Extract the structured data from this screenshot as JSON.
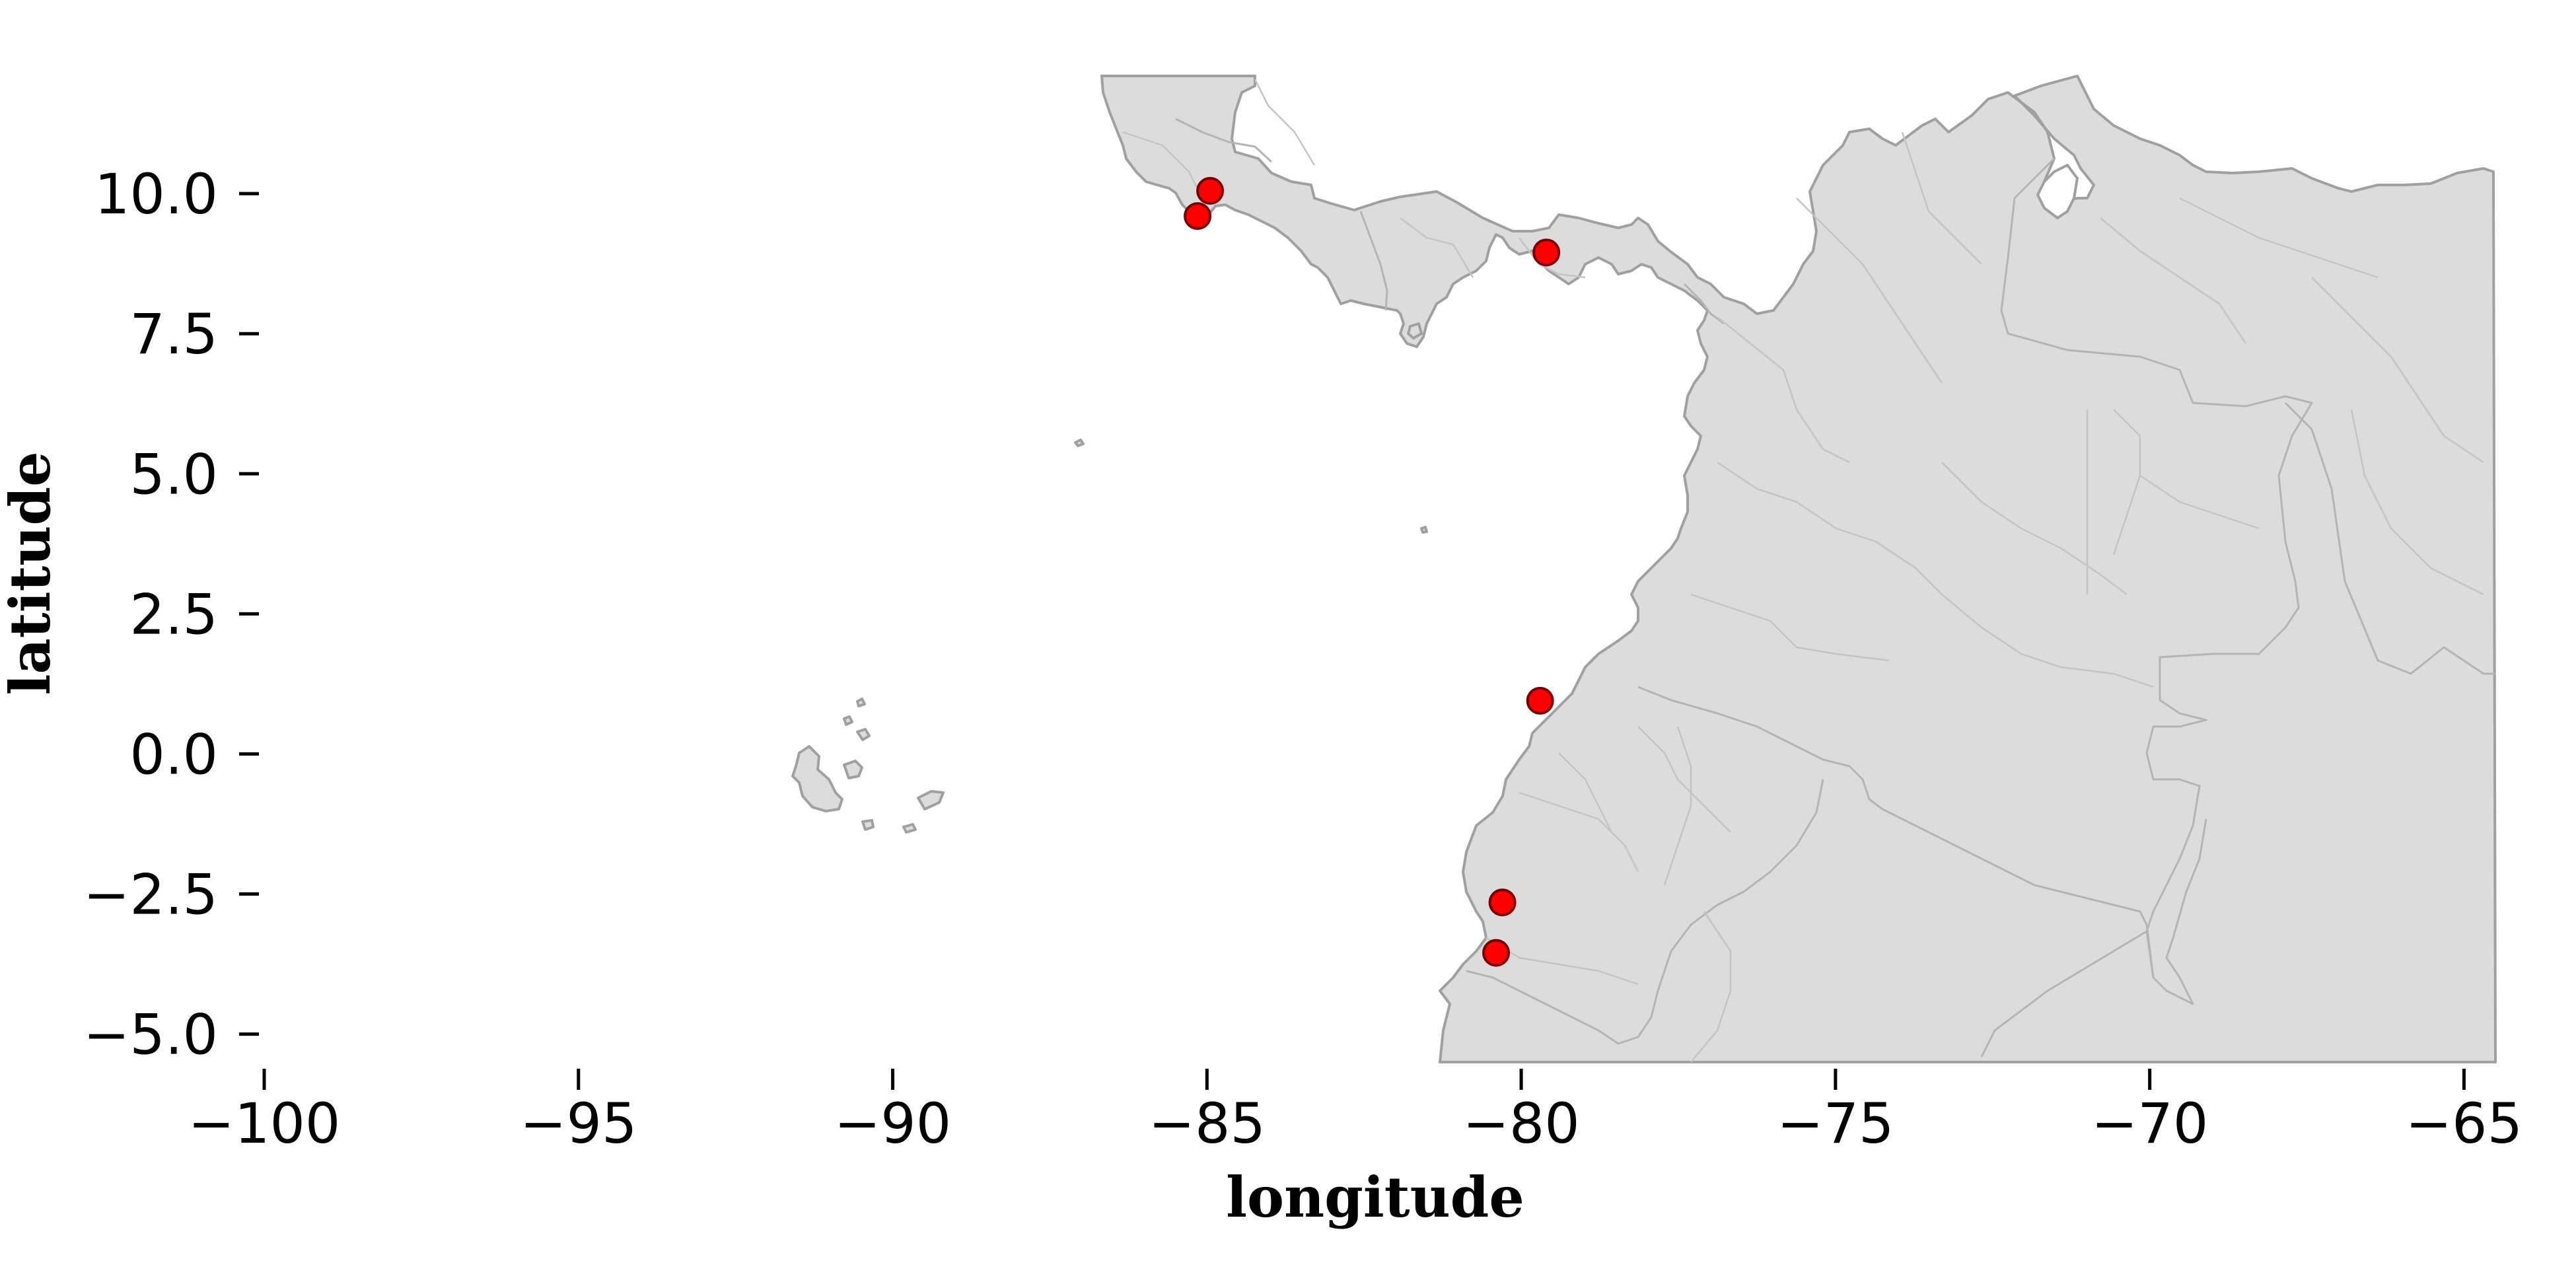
{
  "axes": {
    "x": {
      "label": "longitude",
      "range": [
        -100,
        -64.5
      ],
      "ticks": [
        -100,
        -95,
        -90,
        -85,
        -80,
        -75,
        -70,
        -65
      ],
      "tick_labels": [
        "−100",
        "−95",
        "−90",
        "−85",
        "−80",
        "−75",
        "−70",
        "−65"
      ]
    },
    "y": {
      "label": "latitude",
      "range": [
        -5.5,
        12.1
      ],
      "ticks": [
        -5.0,
        -2.5,
        0.0,
        2.5,
        5.0,
        7.5,
        10.0
      ],
      "tick_labels": [
        "−5.0",
        "−2.5",
        "0.0",
        "2.5",
        "5.0",
        "7.5",
        "10.0"
      ]
    }
  },
  "map": {
    "land_color": "#dcdcdc",
    "border_color": "#a0a0a0",
    "background": "#ffffff"
  },
  "points": {
    "color": "#ff0000",
    "edge_color": "#7a0000",
    "coordinates": [
      {
        "lon": -84.95,
        "lat": 10.05
      },
      {
        "lon": -85.15,
        "lat": 9.6
      },
      {
        "lon": -79.6,
        "lat": 8.95
      },
      {
        "lon": -79.7,
        "lat": 0.95
      },
      {
        "lon": -80.3,
        "lat": -2.65
      },
      {
        "lon": -80.4,
        "lat": -3.55
      }
    ]
  }
}
